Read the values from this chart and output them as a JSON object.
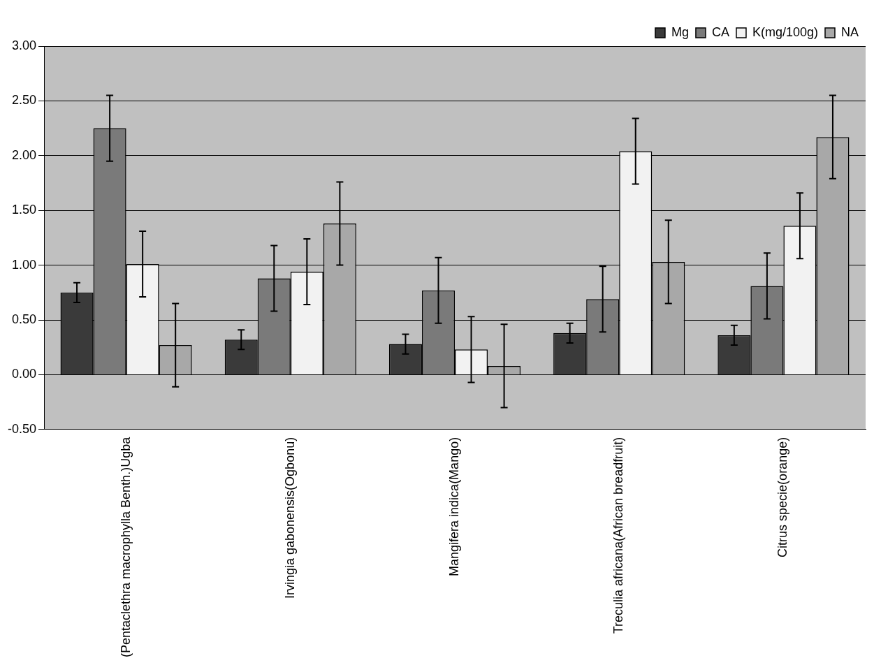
{
  "chart_data": {
    "type": "bar",
    "categories": [
      "(Pentaclethra macrophylla Benth.)Ugba",
      "Irvingia gabonensis(Ogbonu)",
      "Mangifera indica(Mango)",
      "Treculia africana(African breadfruit)",
      "Citrus specie(orange)"
    ],
    "series": [
      {
        "name": "Mg",
        "color": "#3a3a3a",
        "values": [
          0.75,
          0.32,
          0.28,
          0.38,
          0.36
        ],
        "errors": [
          0.09,
          0.09,
          0.09,
          0.09,
          0.09
        ]
      },
      {
        "name": "CA",
        "color": "#7a7a7a",
        "values": [
          2.25,
          0.88,
          0.77,
          0.69,
          0.81
        ],
        "errors": [
          0.3,
          0.3,
          0.3,
          0.3,
          0.3
        ]
      },
      {
        "name": "K(mg/100g)",
        "color": "#f2f2f2",
        "values": [
          1.01,
          0.94,
          0.23,
          2.04,
          1.36
        ],
        "errors": [
          0.3,
          0.3,
          0.3,
          0.3,
          0.3
        ]
      },
      {
        "name": "NA",
        "color": "#a8a8a8",
        "values": [
          0.27,
          1.38,
          0.08,
          1.03,
          2.17
        ],
        "errors": [
          0.38,
          0.38,
          0.38,
          0.38,
          0.38
        ]
      }
    ],
    "ylim": [
      -0.5,
      3
    ],
    "yticks": [
      {
        "value": -0.5,
        "label": "-0.50"
      },
      {
        "value": 0,
        "label": "0.00"
      },
      {
        "value": 0.5,
        "label": "0.50"
      },
      {
        "value": 1,
        "label": "1.00"
      },
      {
        "value": 1.5,
        "label": "1.50"
      },
      {
        "value": 2,
        "label": "2.00"
      },
      {
        "value": 2.5,
        "label": "2.50"
      },
      {
        "value": 3,
        "label": "3.00"
      }
    ],
    "grid": "y",
    "legend": "top right"
  }
}
